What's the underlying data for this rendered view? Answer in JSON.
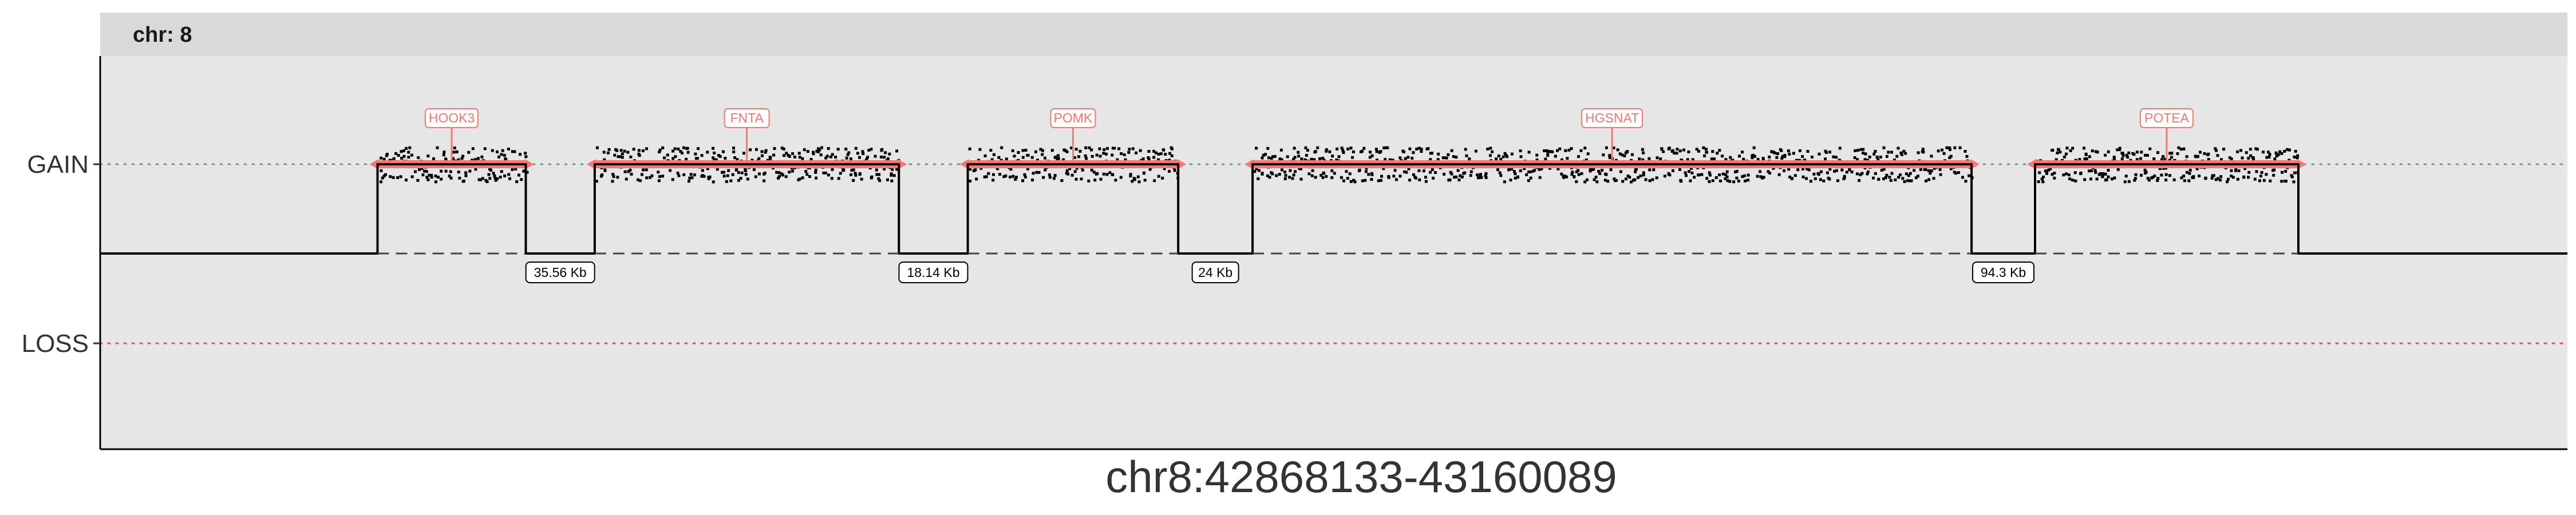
{
  "chart_data": {
    "type": "line",
    "facet_label": "chr: 8",
    "xlabel": "chr8:42868133-43160089",
    "ylabel": "",
    "yticks": [
      "GAIN",
      "LOSS"
    ],
    "grid": false,
    "xlim": [
      42868133,
      43160089
    ],
    "colors": {
      "panel": "#e6e6e6",
      "strip": "#d9d9d9",
      "gene": "#f8766d",
      "gain_line": "#5f9ea0",
      "loss_line": "#d9534f",
      "points": "#000000",
      "step": "#000000"
    },
    "segments": [
      {
        "gene": "HOOK3",
        "start": 42900950,
        "end": 42918500,
        "state": "GAIN"
      },
      {
        "gene": "FNTA",
        "start": 42926650,
        "end": 42962650,
        "state": "GAIN"
      },
      {
        "gene": "POMK",
        "start": 42970800,
        "end": 42995700,
        "state": "GAIN"
      },
      {
        "gene": "HGSNAT",
        "start": 43004500,
        "end": 43089580,
        "state": "GAIN"
      },
      {
        "gene": "POTEA",
        "start": 43097090,
        "end": 43128250,
        "state": "GAIN"
      }
    ],
    "gaps": [
      {
        "label": "35.56 Kb",
        "start": 42918500,
        "end": 42926650
      },
      {
        "label": "18.14 Kb",
        "start": 42962650,
        "end": 42970800
      },
      {
        "label": "24 Kb",
        "start": 42995700,
        "end": 43004500
      },
      {
        "label": "94.3 Kb",
        "start": 43089580,
        "end": 43097090
      }
    ]
  }
}
